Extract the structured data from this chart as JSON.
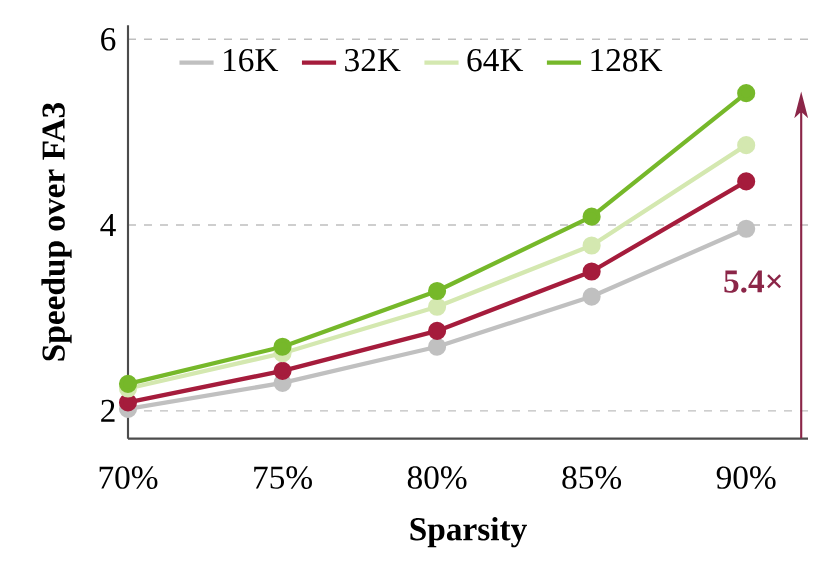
{
  "chart_data": {
    "type": "line",
    "xlabel": "Sparsity",
    "ylabel": "Speedup over FA3",
    "x": [
      70,
      75,
      80,
      85,
      90
    ],
    "series": [
      {
        "name": "16K",
        "color": "#c0c0c0",
        "values": [
          2.02,
          2.3,
          2.69,
          3.23,
          3.96
        ]
      },
      {
        "name": "32K",
        "color": "#a51c3c",
        "values": [
          2.09,
          2.43,
          2.86,
          3.5,
          4.47
        ]
      },
      {
        "name": "64K",
        "color": "#d4e8b0",
        "values": [
          2.24,
          2.62,
          3.12,
          3.78,
          4.86
        ]
      },
      {
        "name": "128K",
        "color": "#76b82a",
        "values": [
          2.29,
          2.69,
          3.29,
          4.09,
          5.42
        ]
      }
    ],
    "xlim": [
      70,
      92
    ],
    "ylim": [
      1.7,
      6.15
    ],
    "xticks": [
      {
        "value": 70,
        "label": "70%"
      },
      {
        "value": 75,
        "label": "75%"
      },
      {
        "value": 80,
        "label": "80%"
      },
      {
        "value": 85,
        "label": "85%"
      },
      {
        "value": 90,
        "label": "90%"
      }
    ],
    "yticks": [
      2,
      4,
      6
    ],
    "grid": "y",
    "legend": "top left",
    "marker": "circle",
    "line_style": "solid",
    "annotations": [
      "5.4×"
    ]
  }
}
